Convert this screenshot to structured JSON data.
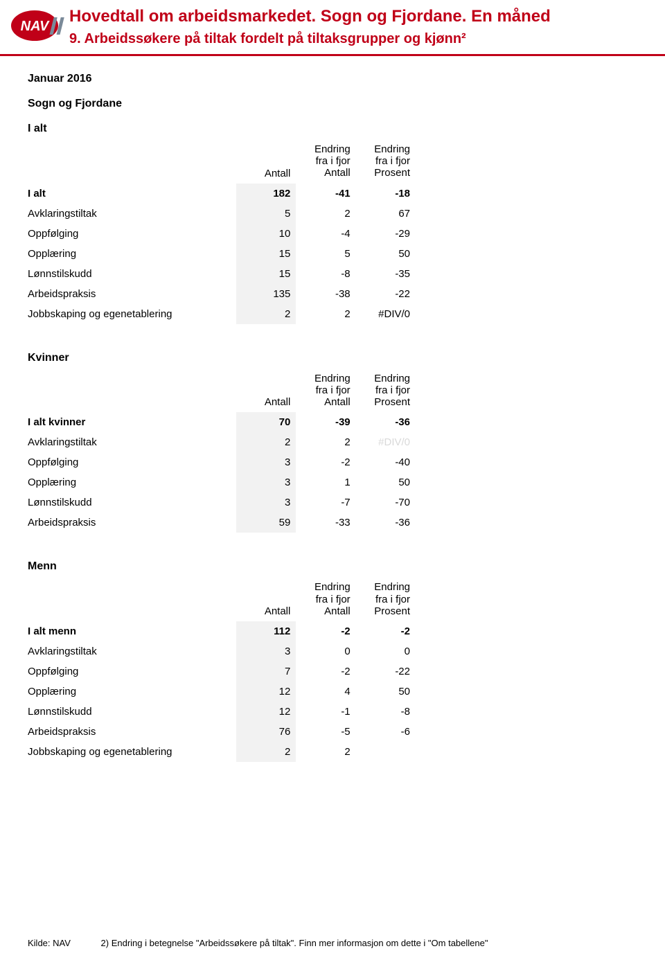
{
  "header": {
    "title_main": "Hovedtall om arbeidsmarkedet. Sogn og Fjordane. En måned",
    "title_sub": "9. Arbeidssøkere på tiltak fordelt på tiltaksgrupper og kjønn²",
    "accent_color": "#c00018"
  },
  "period": "Januar 2016",
  "region": "Sogn og Fjordane",
  "column_headers": {
    "rowlabel_blank": "",
    "antall": "Antall",
    "endring_antall_l1": "Endring",
    "endring_antall_l2": "fra i fjor",
    "endring_antall_l3": "Antall",
    "endring_prosent_l1": "Endring",
    "endring_prosent_l2": "fra i fjor",
    "endring_prosent_l3": "Prosent"
  },
  "sections": {
    "ialt": {
      "title": "I alt",
      "rows": [
        {
          "label": "I alt",
          "antall": "182",
          "d_ant": "-41",
          "d_pct": "-18",
          "total": true
        },
        {
          "label": "Avklaringstiltak",
          "antall": "5",
          "d_ant": "2",
          "d_pct": "67"
        },
        {
          "label": "Oppfølging",
          "antall": "10",
          "d_ant": "-4",
          "d_pct": "-29"
        },
        {
          "label": "Opplæring",
          "antall": "15",
          "d_ant": "5",
          "d_pct": "50"
        },
        {
          "label": "Lønnstilskudd",
          "antall": "15",
          "d_ant": "-8",
          "d_pct": "-35"
        },
        {
          "label": "Arbeidspraksis",
          "antall": "135",
          "d_ant": "-38",
          "d_pct": "-22"
        },
        {
          "label": "Jobbskaping og egenetablering",
          "antall": "2",
          "d_ant": "2",
          "d_pct": "#DIV/0"
        }
      ]
    },
    "kvinner": {
      "title": "Kvinner",
      "rows": [
        {
          "label": "I alt kvinner",
          "antall": "70",
          "d_ant": "-39",
          "d_pct": "-36",
          "total": true
        },
        {
          "label": "Avklaringstiltak",
          "antall": "2",
          "d_ant": "2",
          "d_pct": "#DIV/0",
          "faded_pct": true
        },
        {
          "label": "Oppfølging",
          "antall": "3",
          "d_ant": "-2",
          "d_pct": "-40"
        },
        {
          "label": "Opplæring",
          "antall": "3",
          "d_ant": "1",
          "d_pct": "50"
        },
        {
          "label": "Lønnstilskudd",
          "antall": "3",
          "d_ant": "-7",
          "d_pct": "-70"
        },
        {
          "label": "Arbeidspraksis",
          "antall": "59",
          "d_ant": "-33",
          "d_pct": "-36"
        }
      ]
    },
    "menn": {
      "title": "Menn",
      "rows": [
        {
          "label": "I alt menn",
          "antall": "112",
          "d_ant": "-2",
          "d_pct": "-2",
          "total": true
        },
        {
          "label": "Avklaringstiltak",
          "antall": "3",
          "d_ant": "0",
          "d_pct": "0"
        },
        {
          "label": "Oppfølging",
          "antall": "7",
          "d_ant": "-2",
          "d_pct": "-22"
        },
        {
          "label": "Opplæring",
          "antall": "12",
          "d_ant": "4",
          "d_pct": "50"
        },
        {
          "label": "Lønnstilskudd",
          "antall": "12",
          "d_ant": "-1",
          "d_pct": "-8"
        },
        {
          "label": "Arbeidspraksis",
          "antall": "76",
          "d_ant": "-5",
          "d_pct": "-6"
        },
        {
          "label": "Jobbskaping og egenetablering",
          "antall": "2",
          "d_ant": "2",
          "d_pct": ""
        }
      ]
    }
  },
  "footer": {
    "source": "Kilde: NAV",
    "note": "2) Endring i betegnelse \"Arbeidssøkere på tiltak\". Finn mer informasjon om dette i \"Om tabellene\""
  }
}
